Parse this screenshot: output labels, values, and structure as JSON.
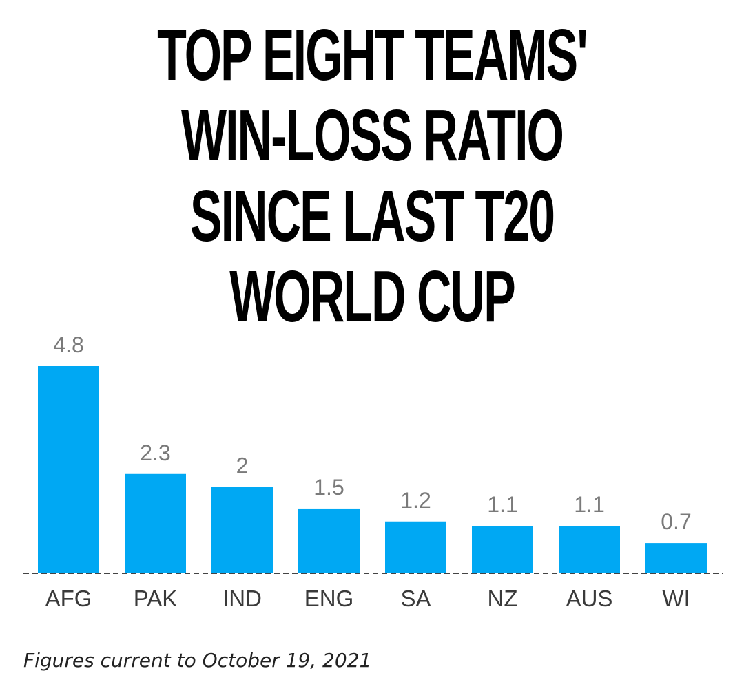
{
  "chart_data": {
    "type": "bar",
    "title": "TOP EIGHT TEAMS' WIN-LOSS RATIO SINCE LAST T20 WORLD CUP",
    "categories": [
      "AFG",
      "PAK",
      "IND",
      "ENG",
      "SA",
      "NZ",
      "AUS",
      "WI"
    ],
    "values": [
      4.8,
      2.3,
      2,
      1.5,
      1.2,
      1.1,
      1.1,
      0.7
    ],
    "value_labels": [
      "4.8",
      "2.3",
      "2",
      "1.5",
      "1.2",
      "1.1",
      "1.1",
      "0.7"
    ],
    "xlabel": "",
    "ylabel": "",
    "ylim": [
      0,
      4.8
    ],
    "grid": false,
    "legend": "none",
    "bar_color": "#00a8f3",
    "baseline_style": "dashed",
    "footnote": "Figures current to October 19, 2021"
  }
}
